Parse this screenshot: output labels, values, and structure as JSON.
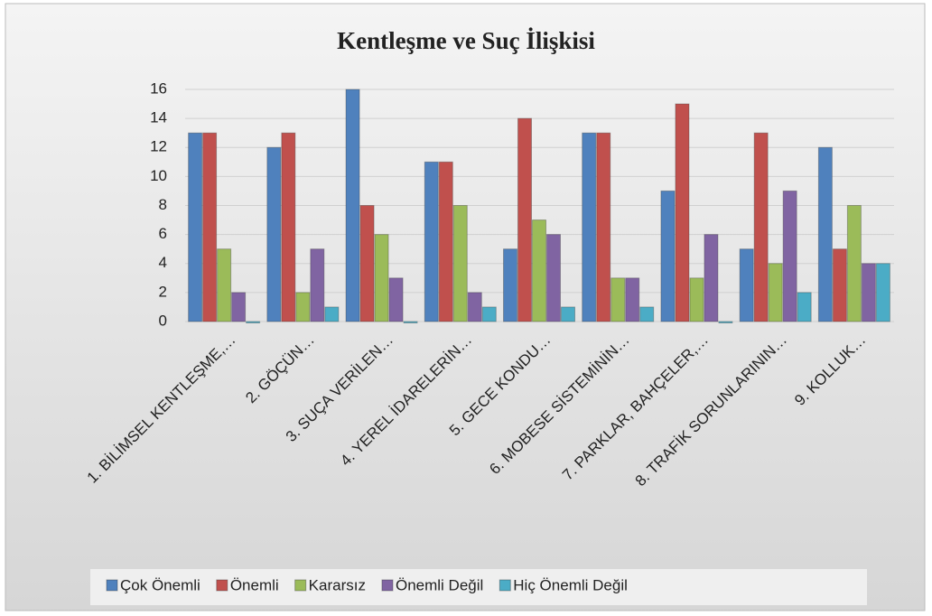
{
  "chart_data": {
    "type": "bar",
    "title": "Kentleşme ve Suç İlişkisi",
    "categories": [
      "1. BİLİMSEL KENTLEŞME,…",
      "2. GÖÇÜN…",
      "3. SUÇA VERİLEN…",
      "4. YEREL İDARELERİN…",
      "5. GECE KONDU…",
      "6. MOBESE SİSTEMİNİN…",
      "7. PARKLAR, BAHÇELER,…",
      "8. TRAFİK SORUNLARININ…",
      "9. KOLLUK…"
    ],
    "series": [
      {
        "name": "Çok Önemli",
        "color": "#4f81bd",
        "values": [
          13,
          12,
          16,
          11,
          5,
          13,
          9,
          5,
          12
        ]
      },
      {
        "name": "Önemli",
        "color": "#c0504d",
        "values": [
          13,
          13,
          8,
          11,
          14,
          13,
          15,
          13,
          5
        ]
      },
      {
        "name": "Kararsız",
        "color": "#9bbb59",
        "values": [
          5,
          2,
          6,
          8,
          7,
          3,
          3,
          4,
          8
        ]
      },
      {
        "name": "Önemli Değil",
        "color": "#8064a2",
        "values": [
          2,
          5,
          3,
          2,
          6,
          3,
          6,
          9,
          4
        ]
      },
      {
        "name": "Hiç Önemli Değil",
        "color": "#4bacc6",
        "values": [
          0,
          1,
          0,
          1,
          1,
          1,
          0,
          2,
          4
        ]
      }
    ],
    "ylim": [
      0,
      16
    ],
    "yticks": [
      0,
      2,
      4,
      6,
      8,
      10,
      12,
      14,
      16
    ],
    "grid": true,
    "legend": "bottom"
  }
}
